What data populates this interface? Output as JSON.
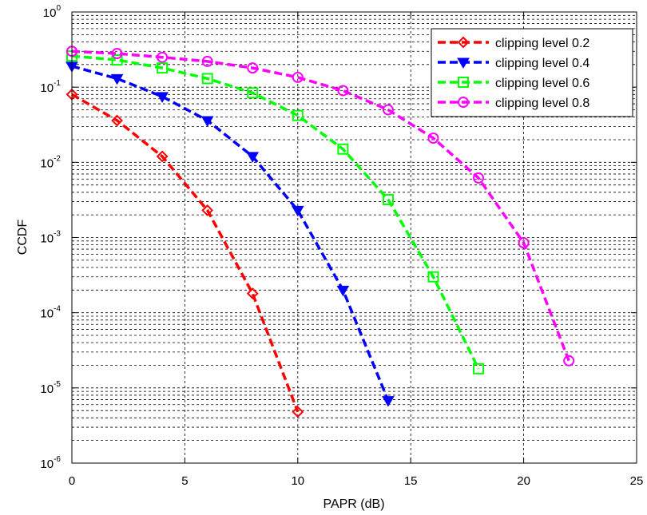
{
  "chart_data": {
    "type": "line",
    "xlabel": "PAPR (dB)",
    "ylabel": "CCDF",
    "xlim": [
      0,
      25
    ],
    "ylim": [
      1e-06,
      1
    ],
    "yscale": "log",
    "grid": true,
    "legend_position": "top-right",
    "x_ticks": [
      "0",
      "5",
      "10",
      "15",
      "20",
      "25"
    ],
    "y_ticks": [
      {
        "base": "10",
        "exp": "-6",
        "value": 1e-06
      },
      {
        "base": "10",
        "exp": "-5",
        "value": 1e-05
      },
      {
        "base": "10",
        "exp": "-4",
        "value": 0.0001
      },
      {
        "base": "10",
        "exp": "-3",
        "value": 0.001
      },
      {
        "base": "10",
        "exp": "-2",
        "value": 0.01
      },
      {
        "base": "10",
        "exp": "-1",
        "value": 0.1
      },
      {
        "base": "10",
        "exp": "0",
        "value": 1
      }
    ],
    "series": [
      {
        "name": "clipping level 0.2",
        "color": "#ff0000",
        "marker": "diamond",
        "x": [
          0,
          2,
          4,
          6,
          8,
          10
        ],
        "y": [
          0.08,
          0.036,
          0.012,
          0.0023,
          0.00018,
          4.8e-06
        ]
      },
      {
        "name": "clipping level 0.4",
        "color": "#0000ff",
        "marker": "triangle-down",
        "x": [
          0,
          2,
          4,
          6,
          8,
          10,
          12,
          14
        ],
        "y": [
          0.19,
          0.13,
          0.075,
          0.036,
          0.012,
          0.0023,
          0.0002,
          6.8e-06
        ]
      },
      {
        "name": "clipping level 0.6",
        "color": "#00ff00",
        "marker": "square",
        "x": [
          0,
          2,
          4,
          6,
          8,
          10,
          12,
          14,
          16,
          18
        ],
        "y": [
          0.26,
          0.23,
          0.18,
          0.13,
          0.084,
          0.042,
          0.015,
          0.0032,
          0.0003,
          1.8e-05
        ]
      },
      {
        "name": "clipping level 0.8",
        "color": "#ff00ff",
        "marker": "circle",
        "x": [
          0,
          2,
          4,
          6,
          8,
          10,
          12,
          14,
          16,
          18,
          20,
          22
        ],
        "y": [
          0.3,
          0.28,
          0.25,
          0.22,
          0.18,
          0.135,
          0.09,
          0.05,
          0.021,
          0.0062,
          0.00085,
          2.3e-05
        ]
      }
    ]
  }
}
